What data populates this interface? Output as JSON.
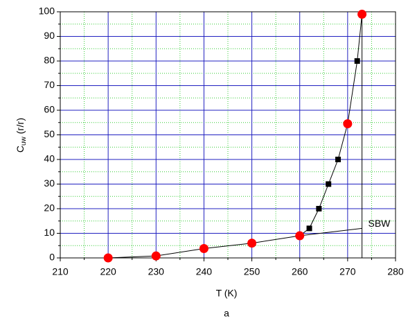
{
  "chart_data": {
    "type": "scatter",
    "x_label": "T (K)",
    "y_label": "C",
    "y_label_sub": "uw",
    "y_label_unit": "(г/г)",
    "caption": "a",
    "xlim": [
      210,
      280
    ],
    "xticks": [
      210,
      220,
      230,
      240,
      250,
      260,
      270,
      280
    ],
    "ylim": [
      0,
      100
    ],
    "yticks": [
      0,
      10,
      20,
      30,
      40,
      50,
      60,
      70,
      80,
      90,
      100
    ],
    "xminor": [
      215,
      225,
      235,
      245,
      255,
      265,
      275
    ],
    "yminor": [
      5,
      15,
      25,
      35,
      45,
      55,
      65,
      75,
      85,
      95
    ],
    "grid": true,
    "major_grid_color": "#2020c0",
    "minor_grid_color": "#33cc33",
    "series": [
      {
        "marker": "line",
        "color": "#000000",
        "x": [
          220,
          230,
          240,
          250,
          260,
          262,
          264,
          266,
          268,
          270,
          272,
          273
        ],
        "values": [
          0,
          0.8,
          3.8,
          6,
          9,
          12,
          20,
          30,
          40,
          54.5,
          80,
          99
        ]
      },
      {
        "marker": "line",
        "color": "#000000",
        "x": [
          260,
          273
        ],
        "values": [
          9,
          12
        ]
      },
      {
        "marker": "line",
        "color": "#000000",
        "x": [
          273,
          273
        ],
        "values": [
          0,
          100
        ]
      },
      {
        "marker": "square",
        "color": "#000000",
        "x": [
          250,
          262,
          264,
          266,
          268,
          272
        ],
        "values": [
          5.6,
          12,
          20,
          30,
          40,
          80
        ]
      },
      {
        "marker": "circle",
        "color": "#ff0000",
        "x": [
          220,
          230,
          240,
          250,
          260,
          270,
          273
        ],
        "values": [
          0,
          0.8,
          3.8,
          6,
          9,
          54.5,
          99
        ]
      }
    ],
    "annotations": [
      {
        "text": "SBW",
        "x": 274,
        "y": 12
      }
    ]
  }
}
